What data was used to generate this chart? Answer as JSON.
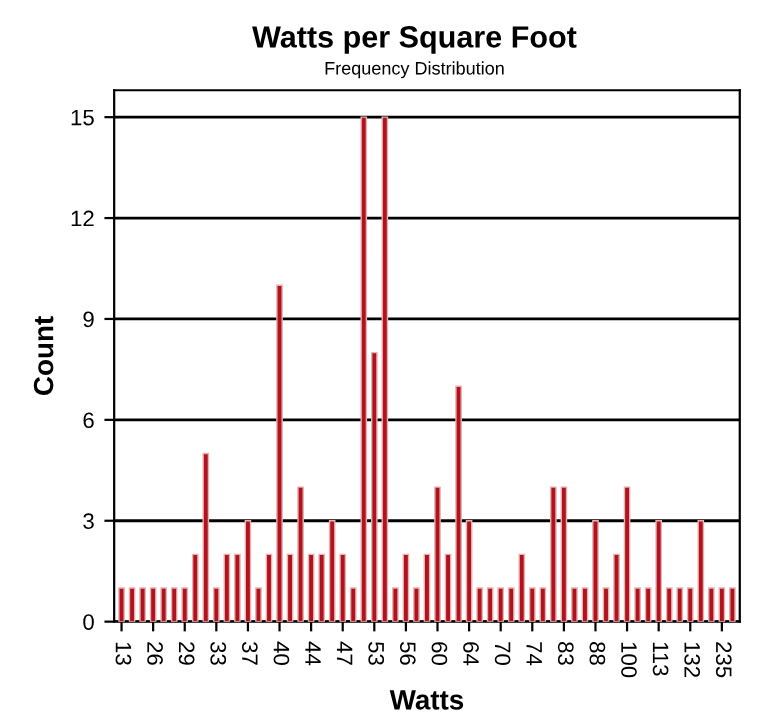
{
  "chart_data": {
    "type": "bar",
    "title": "Watts per Square Foot",
    "subtitle": "Frequency Distribution",
    "xlabel": "Watts",
    "ylabel": "Count",
    "categories": [
      "13",
      null,
      null,
      "26",
      null,
      null,
      "29",
      null,
      null,
      "33",
      null,
      null,
      "37",
      null,
      null,
      "40",
      null,
      null,
      "44",
      null,
      null,
      "47",
      null,
      null,
      "53",
      null,
      null,
      "56",
      null,
      null,
      "60",
      null,
      null,
      "64",
      null,
      null,
      "70",
      null,
      null,
      "74",
      null,
      null,
      "83",
      null,
      null,
      "88",
      null,
      null,
      "100",
      null,
      null,
      "113",
      null,
      null,
      "132",
      null,
      null,
      "235",
      null
    ],
    "values": [
      1,
      1,
      1,
      1,
      1,
      1,
      1,
      2,
      5,
      1,
      2,
      2,
      3,
      1,
      2,
      10,
      2,
      4,
      2,
      2,
      3,
      2,
      1,
      15,
      8,
      15,
      1,
      2,
      1,
      2,
      4,
      2,
      7,
      3,
      1,
      1,
      1,
      1,
      2,
      1,
      1,
      4,
      4,
      1,
      1,
      3,
      1,
      2,
      4,
      1,
      1,
      3,
      1,
      1,
      1,
      3,
      1,
      1,
      1
    ],
    "color": "#b0131e",
    "ylim": [
      0,
      15.8
    ],
    "yticks": [
      0,
      3,
      6,
      9,
      12,
      15
    ],
    "grid": "y"
  }
}
